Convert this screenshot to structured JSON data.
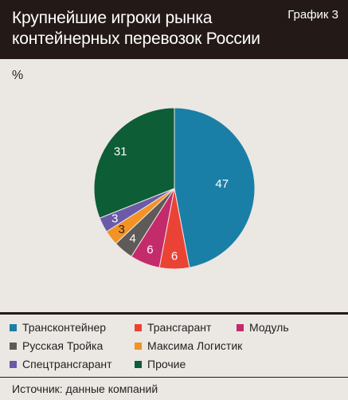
{
  "header": {
    "title_line1": "Крупнейшие игроки рынка",
    "title_line2": "контейнерных перевозок России",
    "chart_no": "График 3"
  },
  "footer": {
    "source": "Источник: данные компаний"
  },
  "chart_data": {
    "type": "pie",
    "ylabel": "%",
    "slices": [
      {
        "name": "Трансконтейнер",
        "value": 47,
        "label": "47",
        "color": "#1a7fa6"
      },
      {
        "name": "Трансгарант",
        "value": 6,
        "label": "6",
        "color": "#ea4335"
      },
      {
        "name": "Модуль",
        "value": 6,
        "label": "6",
        "color": "#c42b6b"
      },
      {
        "name": "Русская Тройка",
        "value": 4,
        "label": "4",
        "color": "#5e5a58"
      },
      {
        "name": "Максима Логистик",
        "value": 3,
        "label": "3",
        "color": "#f39325"
      },
      {
        "name": "Спецтрансгарант",
        "value": 3,
        "label": "3",
        "color": "#6a5aa8"
      },
      {
        "name": "Прочие",
        "value": 31,
        "label": "31",
        "color": "#0d5d36"
      }
    ],
    "label_colors": [
      "#ffffff",
      "#ffffff",
      "#ffffff",
      "#ffffff",
      "#231f20",
      "#ffffff",
      "#ffffff"
    ],
    "legend_placement": "bottom"
  }
}
